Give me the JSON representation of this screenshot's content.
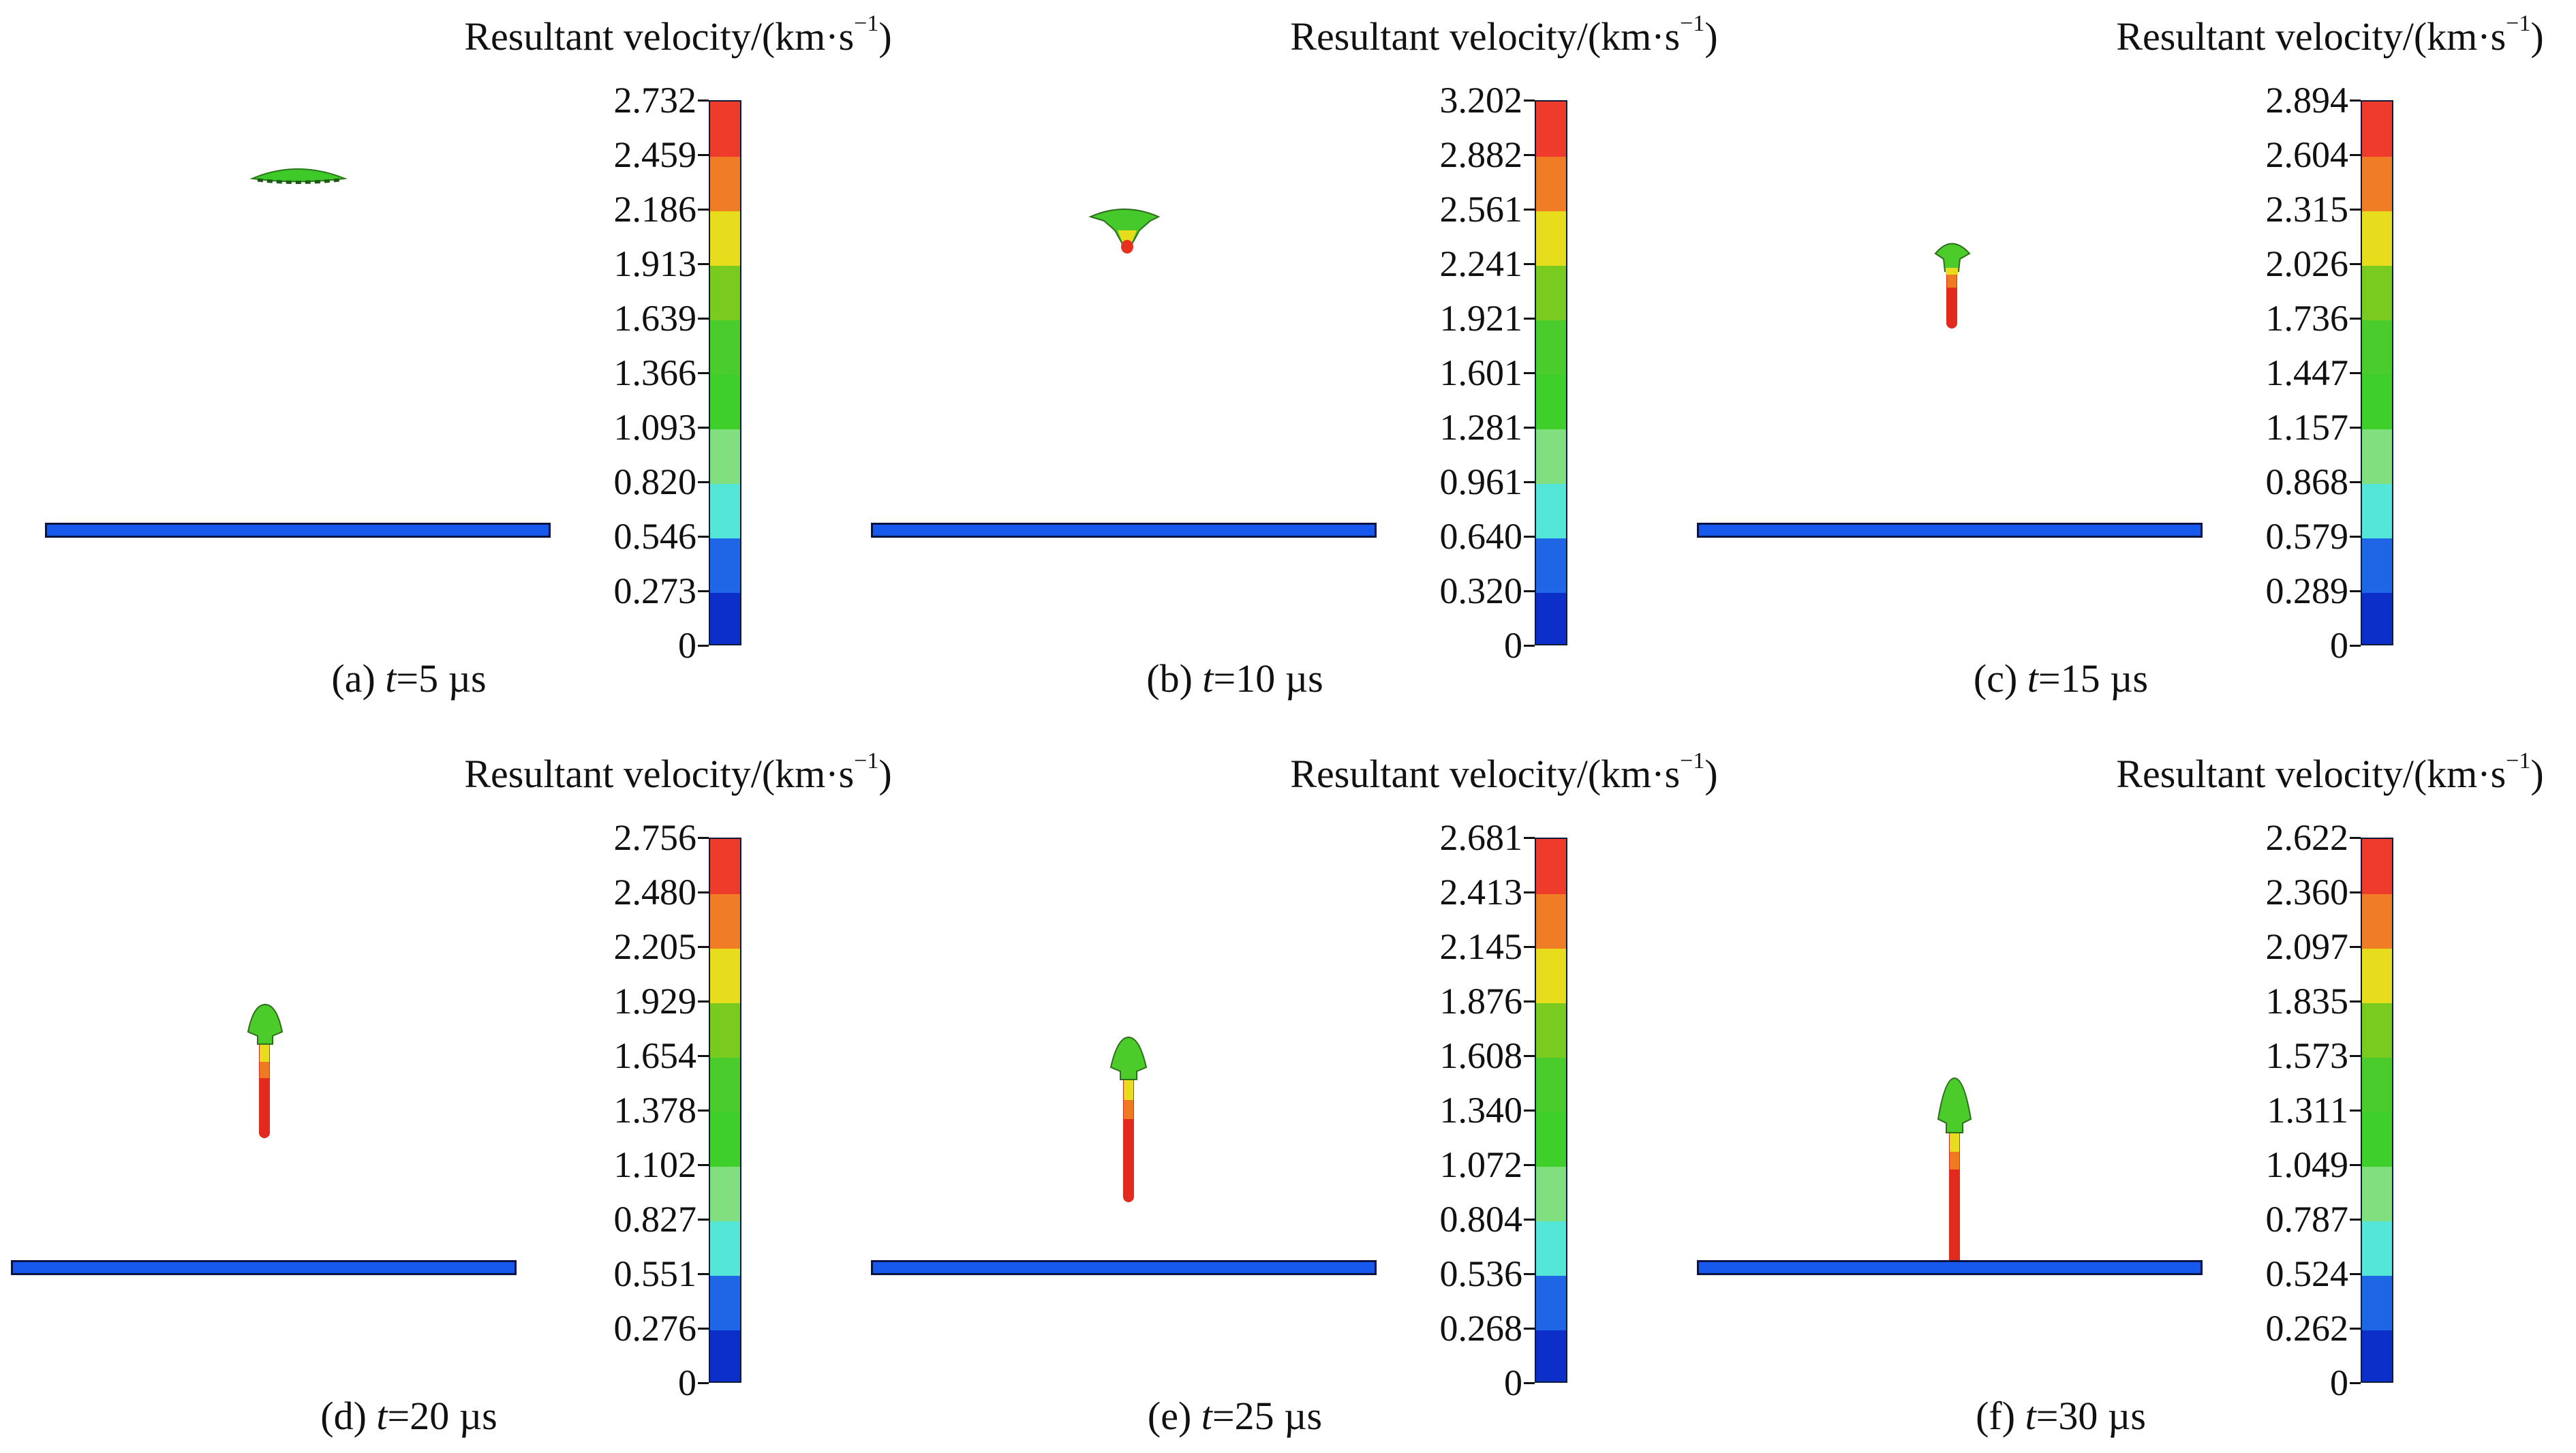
{
  "legend_title_prefix": "Resultant velocity/(km·s",
  "legend_title_sup": "−1",
  "legend_title_suffix": ")",
  "colorbar_colors": [
    "#0b2fc8",
    "#1f66e6",
    "#54e6d6",
    "#82df80",
    "#3fcf2a",
    "#49cc2c",
    "#7acb20",
    "#e7dd1d",
    "#f07c26",
    "#ef3b2b"
  ],
  "panels": [
    {
      "label": "(a) ",
      "time_var": "t",
      "time_value": "=5 µs",
      "ticks": [
        "2.732",
        "2.459",
        "2.186",
        "1.913",
        "1.639",
        "1.366",
        "1.093",
        "0.820",
        "0.546",
        "0.273",
        "0"
      ]
    },
    {
      "label": "(b) ",
      "time_var": "t",
      "time_value": "=10 µs",
      "ticks": [
        "3.202",
        "2.882",
        "2.561",
        "2.241",
        "1.921",
        "1.601",
        "1.281",
        "0.961",
        "0.640",
        "0.320",
        "0"
      ]
    },
    {
      "label": "(c) ",
      "time_var": "t",
      "time_value": "=15 µs",
      "ticks": [
        "2.894",
        "2.604",
        "2.315",
        "2.026",
        "1.736",
        "1.447",
        "1.157",
        "0.868",
        "0.579",
        "0.289",
        "0"
      ]
    },
    {
      "label": "(d) ",
      "time_var": "t",
      "time_value": "=20 µs",
      "ticks": [
        "2.756",
        "2.480",
        "2.205",
        "1.929",
        "1.654",
        "1.378",
        "1.102",
        "0.827",
        "0.551",
        "0.276",
        "0"
      ]
    },
    {
      "label": "(e) ",
      "time_var": "t",
      "time_value": "=25 µs",
      "ticks": [
        "2.681",
        "2.413",
        "2.145",
        "1.876",
        "1.608",
        "1.340",
        "1.072",
        "0.804",
        "0.536",
        "0.268",
        "0"
      ]
    },
    {
      "label": "(f) ",
      "time_var": "t",
      "time_value": "=30 µs",
      "ticks": [
        "2.622",
        "2.360",
        "2.097",
        "1.835",
        "1.573",
        "1.311",
        "1.049",
        "0.787",
        "0.524",
        "0.262",
        "0"
      ]
    }
  ]
}
